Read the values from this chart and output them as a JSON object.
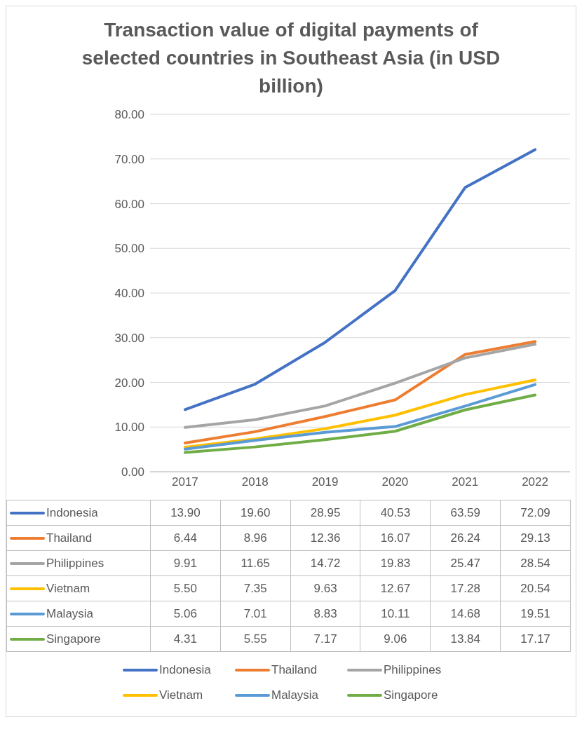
{
  "chart_data": {
    "type": "line",
    "title": "Transaction value of digital payments of selected countries in Southeast Asia (in USD billion)",
    "categories": [
      "2017",
      "2018",
      "2019",
      "2020",
      "2021",
      "2022"
    ],
    "series": [
      {
        "name": "Indonesia",
        "color": "#4472c4",
        "values": [
          13.9,
          19.6,
          28.95,
          40.53,
          63.59,
          72.09
        ],
        "value_labels": [
          "13.90",
          "19.60",
          "28.95",
          "40.53",
          "63.59",
          "72.09"
        ]
      },
      {
        "name": "Thailand",
        "color": "#ed7d31",
        "values": [
          6.44,
          8.96,
          12.36,
          16.07,
          26.24,
          29.13
        ],
        "value_labels": [
          "6.44",
          "8.96",
          "12.36",
          "16.07",
          "26.24",
          "29.13"
        ]
      },
      {
        "name": "Philippines",
        "color": "#a5a5a5",
        "values": [
          9.91,
          11.65,
          14.72,
          19.83,
          25.47,
          28.54
        ],
        "value_labels": [
          "9.91",
          "11.65",
          "14.72",
          "19.83",
          "25.47",
          "28.54"
        ]
      },
      {
        "name": "Vietnam",
        "color": "#ffc000",
        "values": [
          5.5,
          7.35,
          9.63,
          12.67,
          17.28,
          20.54
        ],
        "value_labels": [
          "5.50",
          "7.35",
          "9.63",
          "12.67",
          "17.28",
          "20.54"
        ]
      },
      {
        "name": "Malaysia",
        "color": "#5b9bd5",
        "values": [
          5.06,
          7.01,
          8.83,
          10.11,
          14.68,
          19.51
        ],
        "value_labels": [
          "5.06",
          "7.01",
          "8.83",
          "10.11",
          "14.68",
          "19.51"
        ]
      },
      {
        "name": "Singapore",
        "color": "#70ad47",
        "values": [
          4.31,
          5.55,
          7.17,
          9.06,
          13.84,
          17.17
        ],
        "value_labels": [
          "4.31",
          "5.55",
          "7.17",
          "9.06",
          "13.84",
          "17.17"
        ]
      }
    ],
    "ylim": [
      0,
      80
    ],
    "yticks": [
      {
        "value": 0,
        "label": "0.00"
      },
      {
        "value": 10,
        "label": "10.00"
      },
      {
        "value": 20,
        "label": "20.00"
      },
      {
        "value": 30,
        "label": "30.00"
      },
      {
        "value": 40,
        "label": "40.00"
      },
      {
        "value": 50,
        "label": "50.00"
      },
      {
        "value": 60,
        "label": "60.00"
      },
      {
        "value": 70,
        "label": "70.00"
      },
      {
        "value": 80,
        "label": "80.00"
      }
    ],
    "grid": "y",
    "legend": "bottom",
    "marker": "none",
    "line_style": "solid"
  }
}
